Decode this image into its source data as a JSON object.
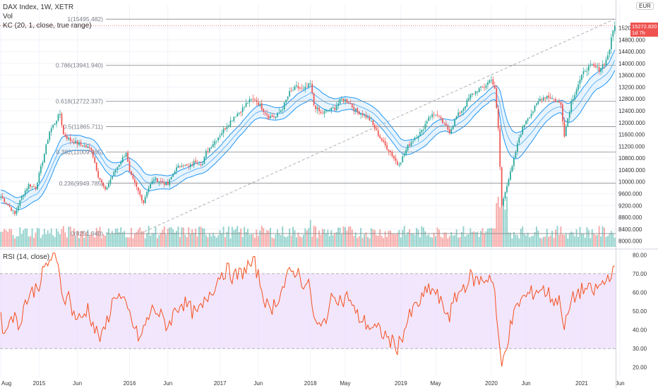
{
  "header": {
    "symbol_line": "DAX Index, 1W, XETR",
    "volume_label": "Vol",
    "kc_label": "KC (20, 1, close, true range)",
    "rsi_label": "RSI (14, close)",
    "currency": "EUR",
    "last_price": "15272.820",
    "countdown": "1d 7h"
  },
  "colors": {
    "up": "#26a69a",
    "down": "#ef5350",
    "kc_band": "#2196f3",
    "rsi_line": "#f4511e",
    "rsi_fill": "#e9d6fb",
    "fib_line": "#888888",
    "trend_line": "#b0b0b0"
  },
  "chart_data": [
    {
      "type": "candlestick",
      "title": "DAX Index, 1W, XETR",
      "ylim": [
        7800,
        16000
      ],
      "y_ticks": [
        "8000.000",
        "8400.000",
        "8800.000",
        "9200.000",
        "9600.000",
        "10000.000",
        "10400.000",
        "10800.000",
        "11200.000",
        "11600.000",
        "12000.000",
        "12400.000",
        "12800.000",
        "13200.000",
        "13600.000",
        "14000.000",
        "14400.000",
        "14800.000",
        "15200.000"
      ],
      "x_ticks": [
        "Aug",
        "2015",
        "Jun",
        "2016",
        "Jun",
        "2017",
        "Jun",
        "2018",
        "May",
        "2019",
        "May",
        "2020",
        "Jun",
        "2021",
        "Jun"
      ],
      "x_tick_weeks": [
        0,
        22,
        44,
        74,
        96,
        126,
        148,
        178,
        198,
        230,
        250,
        282,
        302,
        334,
        356
      ],
      "close_path": [
        [
          0,
          9500
        ],
        [
          5,
          9150
        ],
        [
          8,
          8900
        ],
        [
          12,
          9500
        ],
        [
          16,
          9900
        ],
        [
          20,
          9800
        ],
        [
          24,
          10700
        ],
        [
          28,
          11700
        ],
        [
          32,
          12100
        ],
        [
          34,
          12300
        ],
        [
          36,
          11600
        ],
        [
          40,
          11400
        ],
        [
          44,
          11300
        ],
        [
          48,
          11200
        ],
        [
          52,
          11100
        ],
        [
          56,
          10200
        ],
        [
          60,
          9700
        ],
        [
          64,
          10200
        ],
        [
          68,
          10600
        ],
        [
          72,
          11000
        ],
        [
          74,
          10300
        ],
        [
          78,
          9800
        ],
        [
          82,
          9300
        ],
        [
          84,
          9700
        ],
        [
          88,
          10100
        ],
        [
          92,
          10000
        ],
        [
          96,
          9900
        ],
        [
          100,
          10400
        ],
        [
          104,
          10600
        ],
        [
          108,
          10500
        ],
        [
          112,
          10700
        ],
        [
          116,
          10600
        ],
        [
          118,
          11000
        ],
        [
          122,
          11300
        ],
        [
          126,
          11600
        ],
        [
          130,
          11900
        ],
        [
          134,
          12200
        ],
        [
          138,
          12400
        ],
        [
          142,
          12700
        ],
        [
          146,
          12800
        ],
        [
          150,
          12500
        ],
        [
          154,
          12200
        ],
        [
          158,
          12200
        ],
        [
          162,
          12500
        ],
        [
          166,
          13000
        ],
        [
          170,
          13200
        ],
        [
          174,
          13100
        ],
        [
          178,
          13300
        ],
        [
          180,
          12600
        ],
        [
          184,
          12300
        ],
        [
          188,
          12400
        ],
        [
          192,
          12500
        ],
        [
          196,
          12800
        ],
        [
          200,
          12700
        ],
        [
          204,
          12400
        ],
        [
          208,
          12300
        ],
        [
          212,
          12100
        ],
        [
          216,
          11700
        ],
        [
          220,
          11300
        ],
        [
          224,
          11000
        ],
        [
          228,
          10600
        ],
        [
          230,
          10700
        ],
        [
          234,
          11200
        ],
        [
          238,
          11500
        ],
        [
          242,
          11700
        ],
        [
          246,
          12200
        ],
        [
          250,
          12300
        ],
        [
          254,
          12000
        ],
        [
          258,
          11700
        ],
        [
          262,
          12200
        ],
        [
          266,
          12500
        ],
        [
          270,
          12900
        ],
        [
          274,
          13100
        ],
        [
          278,
          13200
        ],
        [
          282,
          13500
        ],
        [
          284,
          13100
        ],
        [
          286,
          11800
        ],
        [
          288,
          9200
        ],
        [
          290,
          9700
        ],
        [
          294,
          10500
        ],
        [
          298,
          11500
        ],
        [
          302,
          12100
        ],
        [
          306,
          12400
        ],
        [
          310,
          12800
        ],
        [
          314,
          12900
        ],
        [
          318,
          12800
        ],
        [
          322,
          12600
        ],
        [
          324,
          11600
        ],
        [
          328,
          12700
        ],
        [
          332,
          13300
        ],
        [
          336,
          13800
        ],
        [
          340,
          13900
        ],
        [
          344,
          13800
        ],
        [
          348,
          14100
        ],
        [
          350,
          14500
        ],
        [
          352,
          15100
        ],
        [
          353,
          15272
        ]
      ],
      "fib_levels": [
        {
          "ratio": "1",
          "value": 15495.482,
          "label": "1(15495.482)"
        },
        {
          "ratio": "0.786",
          "value": 13941.94,
          "label": "0.786(13941.940)"
        },
        {
          "ratio": "0.618",
          "value": 12722.337,
          "label": "0.618(12722.337)"
        },
        {
          "ratio": "0.5",
          "value": 11865.711,
          "label": "0.5(11865.711)"
        },
        {
          "ratio": "0.382",
          "value": 11009.085,
          "label": "0.382(11009.085)"
        },
        {
          "ratio": "0.236",
          "value": 9949.785,
          "label": "0.236(9949.785)"
        },
        {
          "ratio": "0",
          "value": 8251.94,
          "label": "0(8251.940)"
        }
      ],
      "trend_line": {
        "from": [
          80,
          8250
        ],
        "to": [
          353,
          15500
        ]
      },
      "kc": {
        "length": 20,
        "multiplier": 1,
        "source": "close",
        "true_range": true
      },
      "last_price": 15272.82
    },
    {
      "type": "line",
      "title": "RSI (14, close)",
      "ylim": [
        15,
        82
      ],
      "y_ticks": [
        "20.00",
        "30.00",
        "40.00",
        "50.00",
        "60.00",
        "70.00",
        "80.00"
      ],
      "bands": [
        30,
        70
      ],
      "rsi_path": [
        [
          0,
          45
        ],
        [
          3,
          38
        ],
        [
          6,
          50
        ],
        [
          10,
          42
        ],
        [
          14,
          55
        ],
        [
          18,
          60
        ],
        [
          22,
          65
        ],
        [
          26,
          74
        ],
        [
          30,
          80
        ],
        [
          32,
          75
        ],
        [
          34,
          70
        ],
        [
          36,
          55
        ],
        [
          38,
          61
        ],
        [
          42,
          48
        ],
        [
          46,
          45
        ],
        [
          50,
          52
        ],
        [
          54,
          40
        ],
        [
          58,
          35
        ],
        [
          62,
          48
        ],
        [
          66,
          60
        ],
        [
          70,
          55
        ],
        [
          74,
          48
        ],
        [
          78,
          38
        ],
        [
          80,
          35
        ],
        [
          84,
          45
        ],
        [
          88,
          52
        ],
        [
          92,
          47
        ],
        [
          96,
          42
        ],
        [
          100,
          50
        ],
        [
          104,
          55
        ],
        [
          108,
          52
        ],
        [
          112,
          48
        ],
        [
          116,
          52
        ],
        [
          120,
          60
        ],
        [
          124,
          65
        ],
        [
          126,
          70
        ],
        [
          130,
          72
        ],
        [
          134,
          68
        ],
        [
          138,
          70
        ],
        [
          142,
          74
        ],
        [
          146,
          75
        ],
        [
          150,
          62
        ],
        [
          154,
          50
        ],
        [
          158,
          55
        ],
        [
          162,
          62
        ],
        [
          166,
          70
        ],
        [
          170,
          72
        ],
        [
          174,
          65
        ],
        [
          178,
          62
        ],
        [
          180,
          45
        ],
        [
          184,
          40
        ],
        [
          188,
          50
        ],
        [
          192,
          60
        ],
        [
          196,
          55
        ],
        [
          200,
          58
        ],
        [
          204,
          48
        ],
        [
          208,
          45
        ],
        [
          212,
          42
        ],
        [
          216,
          40
        ],
        [
          220,
          38
        ],
        [
          224,
          34
        ],
        [
          228,
          31
        ],
        [
          230,
          35
        ],
        [
          234,
          45
        ],
        [
          238,
          52
        ],
        [
          242,
          56
        ],
        [
          246,
          62
        ],
        [
          250,
          60
        ],
        [
          254,
          52
        ],
        [
          258,
          48
        ],
        [
          262,
          58
        ],
        [
          266,
          63
        ],
        [
          270,
          68
        ],
        [
          274,
          66
        ],
        [
          278,
          67
        ],
        [
          282,
          69
        ],
        [
          284,
          60
        ],
        [
          286,
          35
        ],
        [
          288,
          20
        ],
        [
          290,
          30
        ],
        [
          294,
          45
        ],
        [
          298,
          55
        ],
        [
          302,
          58
        ],
        [
          306,
          60
        ],
        [
          310,
          62
        ],
        [
          314,
          60
        ],
        [
          318,
          56
        ],
        [
          322,
          55
        ],
        [
          324,
          40
        ],
        [
          328,
          55
        ],
        [
          332,
          60
        ],
        [
          336,
          62
        ],
        [
          340,
          60
        ],
        [
          344,
          63
        ],
        [
          348,
          66
        ],
        [
          350,
          70
        ],
        [
          352,
          72
        ],
        [
          353,
          70
        ]
      ]
    }
  ]
}
